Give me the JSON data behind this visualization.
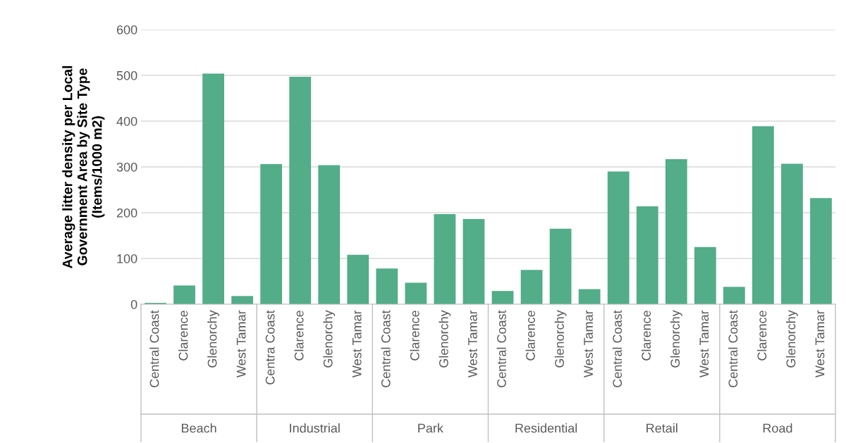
{
  "chart_data": {
    "type": "bar",
    "ylabel": "Average litter density per Local\nGovernment Area by Site Type\n(Items/1000 m2)",
    "categories": [
      "Central Coast",
      "Clarence",
      "Glenorchy",
      "West Tamar",
      "Centra Coast",
      "Clarence",
      "Glenorchy",
      "West Tamar",
      "Central Coast",
      "Clarence",
      "Glenorchy",
      "West Tamar",
      "Central Coast",
      "Clarence",
      "Glenorchy",
      "West Tamar",
      "Central Coast",
      "Clarence",
      "Glenorchy",
      "West Tamar",
      "Central Coast",
      "Clarence",
      "Glenorchy",
      "West Tamar"
    ],
    "values": [
      3,
      41,
      504,
      18,
      306,
      497,
      304,
      108,
      78,
      47,
      197,
      186,
      29,
      75,
      165,
      33,
      290,
      214,
      317,
      125,
      38,
      389,
      307,
      232
    ],
    "color": "#52ad88",
    "ylim": [
      0,
      600
    ],
    "yticks": [
      0,
      100,
      200,
      300,
      400,
      500,
      600
    ],
    "grid": "y",
    "annotations": [
      "Beach",
      "Industrial",
      "Park",
      "Residential",
      "Retail",
      "Road"
    ]
  }
}
